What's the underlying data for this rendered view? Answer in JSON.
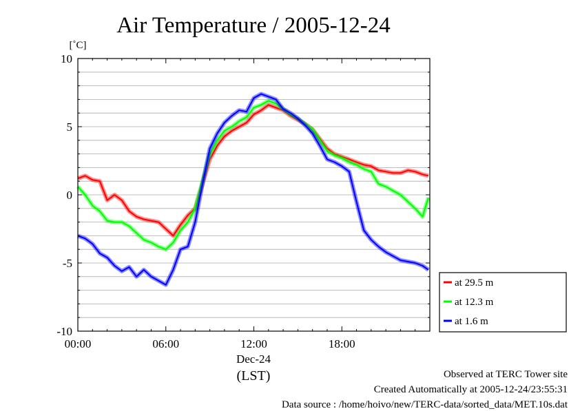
{
  "chart_data": {
    "type": "line",
    "title": "Air Temperature / 2005-12-24",
    "ylabel": "[˚C]",
    "xlabel_date": "Dec-24",
    "xlabel_tz": "(LST)",
    "ylim": [
      -10,
      10
    ],
    "xlim_hours": [
      0,
      24
    ],
    "y_ticks": [
      "10",
      "5",
      "0",
      "-5",
      "-10"
    ],
    "y_tick_values": [
      10,
      5,
      0,
      -5,
      -10
    ],
    "x_ticks": [
      "00:00",
      "06:00",
      "12:00",
      "18:00"
    ],
    "x_tick_hours": [
      0,
      6,
      12,
      18
    ],
    "grid": true,
    "legend_position": "right-bottom",
    "x_hours": [
      0,
      0.5,
      1,
      1.5,
      2,
      2.5,
      3,
      3.5,
      4,
      4.5,
      5,
      5.5,
      6,
      6.5,
      7,
      7.5,
      8,
      8.5,
      9,
      9.5,
      10,
      10.5,
      11,
      11.5,
      12,
      12.5,
      13,
      13.5,
      14,
      14.5,
      15,
      15.5,
      16,
      16.5,
      17,
      17.5,
      18,
      18.5,
      19,
      19.5,
      20,
      20.5,
      21,
      21.5,
      22,
      22.5,
      23,
      23.5,
      23.9
    ],
    "series": [
      {
        "name": "at 29.5 m",
        "color": "#ff0000",
        "values": [
          1.2,
          1.4,
          1.1,
          1.0,
          -0.4,
          0.0,
          -0.4,
          -1.2,
          -1.6,
          -1.8,
          -1.9,
          -2.0,
          -2.5,
          -3.0,
          -2.2,
          -1.5,
          -1.0,
          0.8,
          2.6,
          3.6,
          4.3,
          4.7,
          5.0,
          5.3,
          5.9,
          6.2,
          6.6,
          6.4,
          6.2,
          5.8,
          5.5,
          5.2,
          4.8,
          4.1,
          3.4,
          3.0,
          2.8,
          2.6,
          2.4,
          2.2,
          2.1,
          1.8,
          1.7,
          1.6,
          1.6,
          1.8,
          1.7,
          1.5,
          1.4
        ]
      },
      {
        "name": "at 12.3 m",
        "color": "#00ff00",
        "values": [
          0.6,
          0.0,
          -0.8,
          -1.2,
          -1.9,
          -2.0,
          -2.0,
          -2.3,
          -2.8,
          -3.3,
          -3.5,
          -3.8,
          -4.0,
          -3.5,
          -2.6,
          -2.0,
          -1.0,
          1.0,
          3.0,
          4.0,
          4.7,
          5.0,
          5.4,
          5.7,
          6.4,
          6.6,
          6.9,
          6.7,
          6.3,
          5.9,
          5.6,
          5.2,
          4.8,
          4.0,
          3.2,
          2.9,
          2.7,
          2.4,
          2.2,
          1.9,
          1.7,
          0.8,
          0.6,
          0.3,
          0.0,
          -0.5,
          -1.0,
          -1.6,
          -0.2
        ]
      },
      {
        "name": "at 1.6 m",
        "color": "#0000ff",
        "values": [
          -3.0,
          -3.2,
          -3.6,
          -4.3,
          -4.6,
          -5.2,
          -5.6,
          -5.3,
          -6.0,
          -5.5,
          -6.0,
          -6.3,
          -6.6,
          -5.5,
          -4.0,
          -3.8,
          -2.0,
          0.8,
          3.4,
          4.5,
          5.3,
          5.8,
          6.2,
          6.1,
          7.1,
          7.4,
          7.2,
          7.0,
          6.3,
          6.0,
          5.6,
          5.1,
          4.5,
          3.6,
          2.6,
          2.4,
          2.1,
          1.7,
          -0.5,
          -2.6,
          -3.3,
          -3.8,
          -4.2,
          -4.5,
          -4.8,
          -4.9,
          -5.0,
          -5.2,
          -5.5
        ]
      }
    ]
  },
  "footer": {
    "line1": "Observed at TERC Tower site",
    "line2": "Created Automatically at 2005-12-24/23:55:31",
    "line3": "Data source : /home/hoivo/new/TERC-data/sorted_data/MET.10s.dat"
  }
}
